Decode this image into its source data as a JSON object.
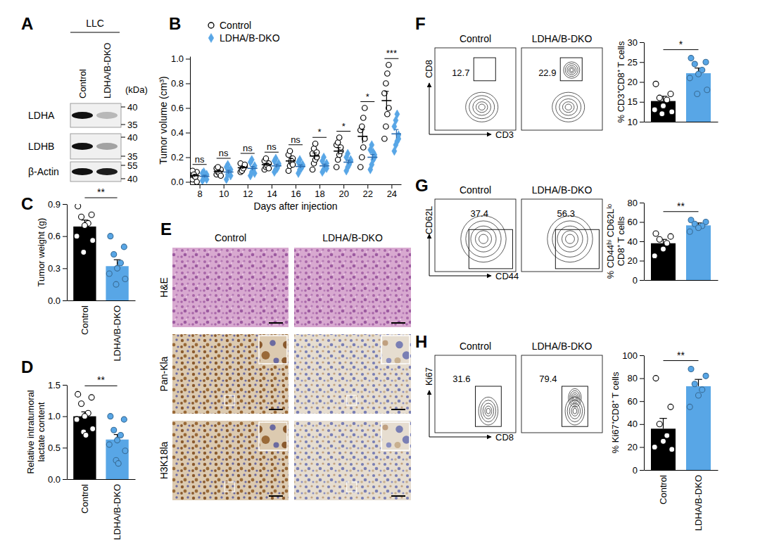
{
  "panel_letters": [
    "A",
    "B",
    "C",
    "D",
    "E",
    "F",
    "G",
    "H"
  ],
  "blot": {
    "title": "LLC",
    "lanes": [
      "Control",
      "LDHA/B-DKO"
    ],
    "unit": "(kDa)",
    "rows": [
      {
        "label": "LDHA",
        "markers": [
          40,
          35
        ]
      },
      {
        "label": "LDHB",
        "markers": [
          40,
          35
        ]
      },
      {
        "label": "β-Actin",
        "markers": [
          55,
          40
        ]
      }
    ]
  },
  "histology": {
    "columns": [
      "Control",
      "LDHA/B-DKO"
    ],
    "rows": [
      "H&E",
      "Pan-Kla",
      "H3K18la"
    ]
  },
  "flow": [
    {
      "xlabel": "CD3",
      "ylabel": "CD8",
      "plots": [
        {
          "title": "Control",
          "gate": 12.7
        },
        {
          "title": "LDHA/B-DKO",
          "gate": 22.9
        }
      ]
    },
    {
      "xlabel": "CD44",
      "ylabel": "CD62L",
      "plots": [
        {
          "title": "Control",
          "gate": 37.4
        },
        {
          "title": "LDHA/B-DKO",
          "gate": 56.3
        }
      ]
    },
    {
      "xlabel": "CD8",
      "ylabel": "Ki67",
      "plots": [
        {
          "title": "Control",
          "gate": 31.6
        },
        {
          "title": "LDHA/B-DKO",
          "gate": 79.4
        }
      ]
    }
  ],
  "chart_data": [
    {
      "type": "scatter",
      "x": [
        8,
        10,
        12,
        14,
        16,
        18,
        20,
        22,
        24
      ],
      "xlim": [
        7.2,
        24.8
      ],
      "xticks": [
        8,
        10,
        12,
        14,
        16,
        18,
        20,
        22,
        24
      ],
      "ylim": [
        -0.02,
        1.02
      ],
      "yticks": [
        {
          "value": 0,
          "label": "0.0"
        },
        0.2,
        0.4,
        0.6,
        0.8,
        {
          "value": 1,
          "label": "1.0"
        }
      ],
      "xlabel": "Days after injection",
      "ylabel": "Tumor volume (cm³)",
      "legend": "top-left",
      "annotations": [
        "ns",
        "ns",
        "ns",
        "ns",
        "ns",
        "*",
        "*",
        "*",
        "***"
      ],
      "series": [
        {
          "name": "Control",
          "color": "#000000",
          "marker": "circle",
          "values": [
            [
              0.02,
              0.05,
              0.07,
              0.08,
              0.09,
              0.06,
              0.04,
              0.0
            ],
            [
              0.06,
              0.08,
              0.09,
              0.1,
              0.11,
              0.12,
              0.07,
              0.05
            ],
            [
              0.08,
              0.1,
              0.12,
              0.13,
              0.15,
              0.09,
              0.11,
              0.14
            ],
            [
              0.1,
              0.12,
              0.14,
              0.15,
              0.17,
              0.19,
              0.13,
              0.11
            ],
            [
              0.09,
              0.13,
              0.16,
              0.19,
              0.22,
              0.25,
              0.17,
              0.14
            ],
            [
              0.1,
              0.15,
              0.18,
              0.2,
              0.23,
              0.27,
              0.31,
              0.24
            ],
            [
              0.12,
              0.18,
              0.22,
              0.25,
              0.3,
              0.32,
              0.36,
              0.28
            ],
            [
              0.12,
              0.2,
              0.28,
              0.35,
              0.42,
              0.45,
              0.52,
              0.6
            ],
            [
              0.35,
              0.45,
              0.55,
              0.6,
              0.72,
              0.8,
              0.88,
              0.95
            ]
          ],
          "mean": [
            0.05,
            0.085,
            0.115,
            0.14,
            0.17,
            0.21,
            0.25,
            0.37,
            0.66
          ],
          "error": [
            0.01,
            0.01,
            0.01,
            0.01,
            0.02,
            0.025,
            0.028,
            0.055,
            0.075
          ]
        },
        {
          "name": "LDHA/B-DKO",
          "color": "#58a6e6",
          "marker": "diamond",
          "values": [
            [
              0.01,
              0.03,
              0.05,
              0.06,
              0.07,
              0.08,
              0.04,
              0.02
            ],
            [
              0.02,
              0.06,
              0.08,
              0.1,
              0.12,
              0.14,
              0.09,
              0.05
            ],
            [
              0.05,
              0.08,
              0.1,
              0.13,
              0.16,
              0.18,
              0.11,
              0.07
            ],
            [
              0.08,
              0.1,
              0.12,
              0.14,
              0.17,
              0.19,
              0.11,
              0.15
            ],
            [
              0.07,
              0.1,
              0.12,
              0.14,
              0.16,
              0.18,
              0.11,
              0.13
            ],
            [
              0.08,
              0.1,
              0.12,
              0.15,
              0.17,
              0.2,
              0.13,
              0.11
            ],
            [
              0.09,
              0.12,
              0.15,
              0.18,
              0.2,
              0.23,
              0.14,
              0.17
            ],
            [
              0.1,
              0.14,
              0.18,
              0.22,
              0.26,
              0.3,
              0.24,
              0.2
            ],
            [
              0.25,
              0.3,
              0.33,
              0.38,
              0.45,
              0.5,
              0.55,
              0.35
            ]
          ],
          "mean": [
            0.045,
            0.08,
            0.11,
            0.13,
            0.125,
            0.13,
            0.16,
            0.2,
            0.39
          ],
          "error": [
            0.009,
            0.014,
            0.015,
            0.013,
            0.013,
            0.014,
            0.016,
            0.022,
            0.035
          ]
        }
      ]
    },
    {
      "type": "bar",
      "categories": [
        "Control",
        "LDHA/B-DKO"
      ],
      "values": [
        0.69,
        0.32
      ],
      "errors": [
        0.06,
        0.06
      ],
      "points": [
        [
          0.88,
          0.8,
          0.78,
          0.72,
          0.7,
          0.6,
          0.56,
          0.45
        ],
        [
          0.6,
          0.5,
          0.43,
          0.35,
          0.3,
          0.25,
          0.2,
          0.15
        ]
      ],
      "colors": [
        "#000000",
        "#58a6e6"
      ],
      "ylim": [
        0,
        0.9
      ],
      "yticks": [
        {
          "value": 0,
          "label": "0.0"
        },
        0.3,
        0.6,
        0.9
      ],
      "ylabel": "Tumor weight (g)",
      "annotations": [
        "**"
      ]
    },
    {
      "type": "bar",
      "categories": [
        "Control",
        "LDHA/B-DKO"
      ],
      "values": [
        1.0,
        0.63
      ],
      "errors": [
        0.07,
        0.08
      ],
      "points": [
        [
          1.35,
          1.3,
          1.2,
          1.05,
          1.0,
          0.95,
          0.8,
          0.75,
          0.7
        ],
        [
          1.0,
          0.95,
          0.78,
          0.7,
          0.62,
          0.55,
          0.45,
          0.3,
          0.25
        ]
      ],
      "colors": [
        "#000000",
        "#58a6e6"
      ],
      "ylim": [
        0,
        1.5
      ],
      "yticks": [
        {
          "value": 0,
          "label": "0.0"
        },
        0.5,
        {
          "value": 1,
          "label": "1.0"
        },
        1.5
      ],
      "ylabel": "Relative intratumoral lactate content",
      "annotations": [
        "**"
      ]
    },
    {
      "type": "bar",
      "categories": [
        null,
        null
      ],
      "values": [
        15.2,
        22.2
      ],
      "errors": [
        1.2,
        1.3
      ],
      "points": [
        [
          19.5,
          17,
          16,
          15.5,
          14,
          13,
          12.5,
          12
        ],
        [
          26,
          25,
          24.5,
          23,
          22,
          21,
          18,
          17
        ]
      ],
      "colors": [
        "#000000",
        "#58a6e6"
      ],
      "ylim": [
        10,
        30
      ],
      "yticks": [
        10,
        15,
        20,
        25,
        30
      ],
      "ylabel": "% CD3⁺CD8⁺ T cells",
      "annotations": [
        "*"
      ]
    },
    {
      "type": "bar",
      "categories": [
        null,
        null
      ],
      "values": [
        38,
        56.5
      ],
      "errors": [
        4,
        2.5
      ],
      "points": [
        [
          48,
          45,
          42,
          38,
          32,
          25
        ],
        [
          62,
          60,
          58,
          56,
          54,
          50
        ]
      ],
      "colors": [
        "#000000",
        "#58a6e6"
      ],
      "ylim": [
        0,
        80
      ],
      "yticks": [
        0,
        20,
        40,
        60,
        80
      ],
      "ylabel": "% CD44ʰⁱ CD62Lˡᵒ CD8⁺ T cells",
      "annotations": [
        "**"
      ]
    },
    {
      "type": "bar",
      "categories": [
        "Control",
        "LDHA/B-DKO"
      ],
      "values": [
        36,
        73
      ],
      "errors": [
        9,
        6
      ],
      "points": [
        [
          80,
          55,
          40,
          30,
          25,
          20,
          18
        ],
        [
          88,
          82,
          75,
          70,
          65,
          55
        ]
      ],
      "colors": [
        "#000000",
        "#58a6e6"
      ],
      "ylim": [
        0,
        100
      ],
      "yticks": [
        0,
        20,
        40,
        60,
        80,
        100
      ],
      "ylabel": "% Ki67⁺CD8⁺ T cells",
      "annotations": [
        "**"
      ]
    }
  ]
}
